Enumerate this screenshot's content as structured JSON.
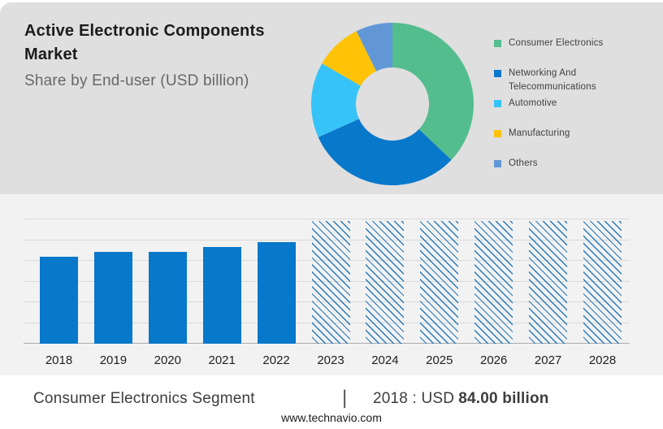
{
  "header": {
    "title": "Active Electronic Components Market",
    "subtitle": "Share by End-user (USD billion)"
  },
  "chart_data": [
    {
      "type": "pie",
      "subtype": "donut",
      "title": "Share by End-user (USD billion)",
      "labels": [
        "Consumer Electronics",
        "Networking And Telecommunications",
        "Automotive",
        "Manufacturing",
        "Others"
      ],
      "values_share_pct": [
        37.1,
        31.2,
        15.0,
        9.4,
        7.3
      ],
      "colors": [
        "#53BD8E",
        "#0878CB",
        "#36C3F7",
        "#FEC306",
        "#6197D6"
      ],
      "hole_ratio": 0.45,
      "start_angle_deg": 0,
      "direction": "clockwise",
      "legend_position": "right"
    },
    {
      "type": "bar",
      "title": "",
      "xlabel": "",
      "ylabel": "",
      "categories": [
        "2018",
        "2019",
        "2020",
        "2021",
        "2022",
        "2023",
        "2024",
        "2025",
        "2026",
        "2027",
        "2028"
      ],
      "series": [
        {
          "name": "Consumer Electronics Segment (USD billion)",
          "values": [
            84.0,
            88.6,
            88.4,
            93.5,
            98.0,
            null,
            null,
            null,
            null,
            null,
            null
          ]
        }
      ],
      "hatched_forecast": [
        false,
        false,
        false,
        false,
        false,
        true,
        true,
        true,
        true,
        true,
        true
      ],
      "forecast_note": "2023-2028 drawn as full-height hatched bars, values not labeled",
      "ylim": [
        0,
        120
      ],
      "gridline_step": 20,
      "grid": true,
      "y_axis_labels_shown": false,
      "bar_color": "#0878CB",
      "hatch_color": "#2579BE"
    }
  ],
  "footer": {
    "segment_label": "Consumer Electronics Segment",
    "separator": "|",
    "stat_prefix": "2018 : USD",
    "stat_value": "84.00 billion",
    "website": "www.technavio.com"
  },
  "colors": {
    "panel_top_bg": "#dfdfdf",
    "panel_chart_bg": "#f2f2f2",
    "footer_bg": "#ffffff",
    "grid_line": "#d9d9d9",
    "axis_line": "#ababab"
  }
}
